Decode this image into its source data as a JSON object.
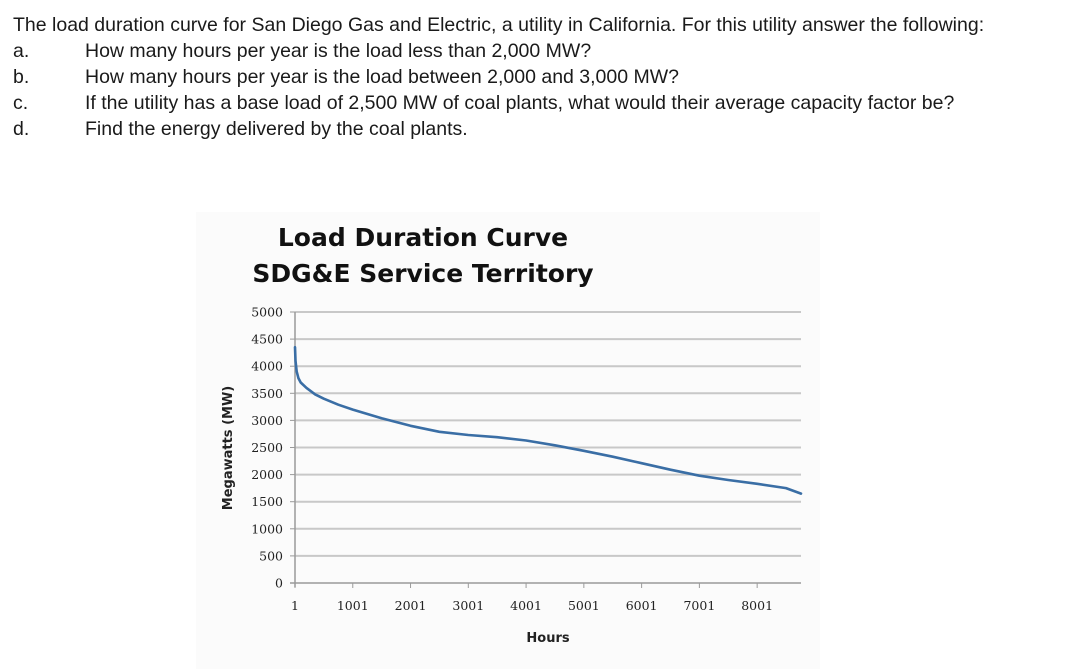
{
  "question": {
    "intro": "The load duration curve for San Diego Gas and Electric, a utility in California.  For this utility answer the following:",
    "items": [
      {
        "letter": "a.",
        "text": "How many hours per year is the load less than 2,000 MW?"
      },
      {
        "letter": "b.",
        "text": "How many hours per year is the load between 2,000 and 3,000 MW?"
      },
      {
        "letter": "c.",
        "text": "If the utility has a base load of 2,500 MW of coal plants, what would their average capacity factor be?"
      },
      {
        "letter": "d.",
        "text": "Find the energy delivered by the coal plants."
      }
    ]
  },
  "chart_data": {
    "type": "line",
    "title": "Load Duration Curve",
    "subtitle": "SDG&E Service Territory",
    "xlabel": "Hours",
    "ylabel": "Megawatts (MW)",
    "xlim": [
      1,
      8760
    ],
    "ylim": [
      0,
      5000
    ],
    "x_ticks": [
      1,
      1001,
      2001,
      3001,
      4001,
      5001,
      6001,
      7001,
      8001
    ],
    "y_ticks": [
      0,
      500,
      1000,
      1500,
      2000,
      2500,
      3000,
      3500,
      4000,
      4500,
      5000
    ],
    "grid": "horizontal",
    "legend": "none",
    "line_color": "#3a6ea5",
    "series": [
      {
        "name": "Load",
        "x": [
          1,
          10,
          30,
          60,
          100,
          200,
          350,
          500,
          750,
          1001,
          1500,
          2001,
          2500,
          3001,
          3500,
          4001,
          4500,
          5001,
          5500,
          6001,
          6500,
          7001,
          7500,
          8001,
          8500,
          8760
        ],
        "y": [
          4350,
          4100,
          3900,
          3780,
          3700,
          3600,
          3480,
          3400,
          3290,
          3200,
          3040,
          2900,
          2790,
          2730,
          2690,
          2630,
          2540,
          2440,
          2330,
          2210,
          2090,
          1980,
          1900,
          1830,
          1750,
          1650
        ]
      }
    ]
  }
}
